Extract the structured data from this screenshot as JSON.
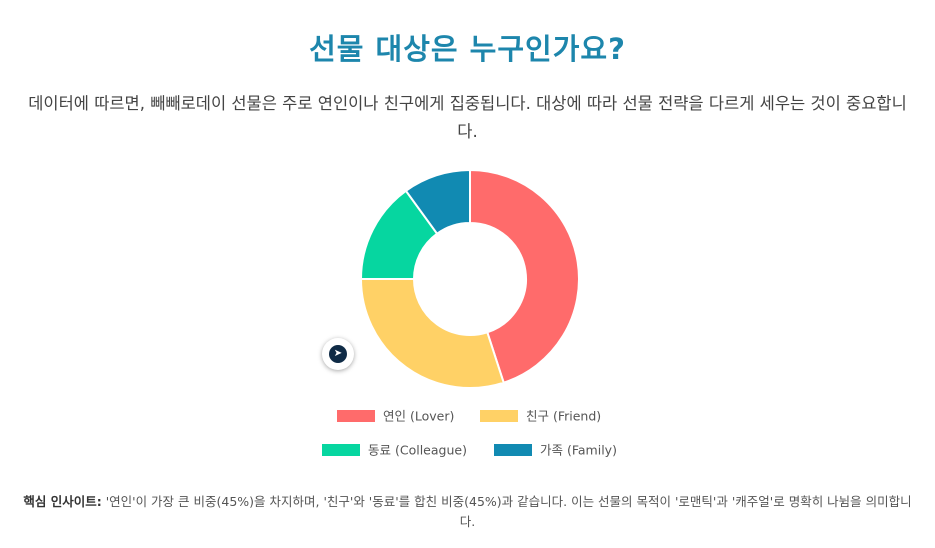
{
  "header": {
    "title": "선물 대상은 누구인가요?",
    "description": "데이터에 따르면, 빼빼로데이 선물은 주로 연인이나 친구에게 집중됩니다. 대상에 따라 선물 전략을 다르게 세우는 것이 중요합니다."
  },
  "chart_data": {
    "type": "doughnut",
    "title": "",
    "categories": [
      "연인 (Lover)",
      "친구 (Friend)",
      "동료 (Colleague)",
      "가족 (Family)"
    ],
    "values": [
      45,
      30,
      15,
      10
    ],
    "colors": [
      "#ff6b6b",
      "#ffd166",
      "#06d6a0",
      "#118ab2"
    ],
    "legend_position": "bottom",
    "grid": false
  },
  "insight": {
    "label": "핵심 인사이트:",
    "text": "'연인'이 가장 큰 비중(45%)을 차지하며, '친구'와 '동료'를 합친 비중(45%)과 같습니다. 이는 선물의 목적이 '로맨틱'과 '캐주얼'로 명확히 나뉨을 의미합니다."
  },
  "widget": {
    "icon": "extension-arrow-icon"
  }
}
